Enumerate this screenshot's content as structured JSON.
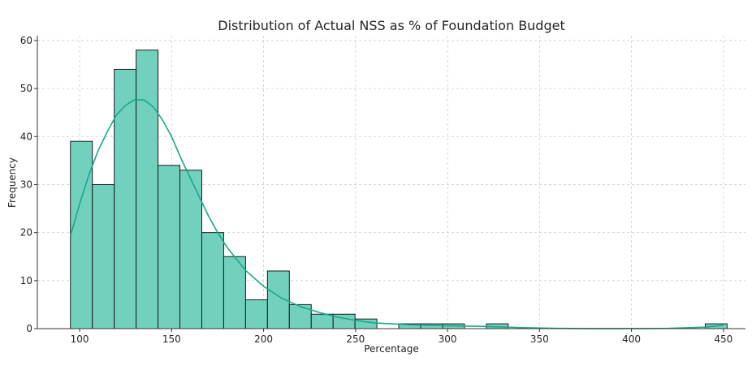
{
  "chart_data": {
    "type": "bar",
    "title": "Distribution of Actual NSS as % of Foundation Budget",
    "xlabel": "Percentage",
    "ylabel": "Frequency",
    "xlim": [
      77,
      462
    ],
    "ylim": [
      0,
      61
    ],
    "xticks": [
      100,
      150,
      200,
      250,
      300,
      350,
      400,
      450
    ],
    "yticks": [
      0,
      10,
      20,
      30,
      40,
      50,
      60
    ],
    "grid": true,
    "bins": [
      {
        "x0": 95.0,
        "x1": 106.9,
        "count": 39
      },
      {
        "x0": 106.9,
        "x1": 118.8,
        "count": 30
      },
      {
        "x0": 118.8,
        "x1": 130.7,
        "count": 54
      },
      {
        "x0": 130.7,
        "x1": 142.6,
        "count": 58
      },
      {
        "x0": 142.6,
        "x1": 154.5,
        "count": 34
      },
      {
        "x0": 154.5,
        "x1": 166.4,
        "count": 33
      },
      {
        "x0": 166.4,
        "x1": 178.3,
        "count": 20
      },
      {
        "x0": 178.3,
        "x1": 190.2,
        "count": 15
      },
      {
        "x0": 190.2,
        "x1": 202.1,
        "count": 6
      },
      {
        "x0": 202.1,
        "x1": 214.0,
        "count": 12
      },
      {
        "x0": 214.0,
        "x1": 225.9,
        "count": 5
      },
      {
        "x0": 225.9,
        "x1": 237.8,
        "count": 3
      },
      {
        "x0": 237.8,
        "x1": 249.7,
        "count": 3
      },
      {
        "x0": 249.7,
        "x1": 261.6,
        "count": 2
      },
      {
        "x0": 261.6,
        "x1": 273.5,
        "count": 0
      },
      {
        "x0": 273.5,
        "x1": 285.4,
        "count": 1
      },
      {
        "x0": 285.4,
        "x1": 297.3,
        "count": 1
      },
      {
        "x0": 297.3,
        "x1": 309.2,
        "count": 1
      },
      {
        "x0": 309.2,
        "x1": 321.1,
        "count": 0
      },
      {
        "x0": 321.1,
        "x1": 333.0,
        "count": 1
      },
      {
        "x0": 333.0,
        "x1": 344.9,
        "count": 0
      },
      {
        "x0": 344.9,
        "x1": 356.8,
        "count": 0
      },
      {
        "x0": 356.8,
        "x1": 368.7,
        "count": 0
      },
      {
        "x0": 368.7,
        "x1": 380.6,
        "count": 0
      },
      {
        "x0": 380.6,
        "x1": 392.5,
        "count": 0
      },
      {
        "x0": 392.5,
        "x1": 404.4,
        "count": 0
      },
      {
        "x0": 404.4,
        "x1": 416.3,
        "count": 0
      },
      {
        "x0": 416.3,
        "x1": 428.2,
        "count": 0
      },
      {
        "x0": 428.2,
        "x1": 440.1,
        "count": 0
      },
      {
        "x0": 440.1,
        "x1": 452.0,
        "count": 1
      }
    ],
    "kde": {
      "x": [
        95,
        100,
        105,
        110,
        115,
        120,
        125,
        130,
        135,
        140,
        145,
        150,
        155,
        160,
        165,
        170,
        175,
        180,
        190,
        200,
        210,
        220,
        230,
        240,
        250,
        260,
        280,
        300,
        320,
        340,
        360,
        380,
        400,
        420,
        440,
        450
      ],
      "y": [
        19.3,
        26,
        32,
        37,
        41,
        44.5,
        46.5,
        47.7,
        47.6,
        46.2,
        43.5,
        40,
        35.5,
        31.5,
        27.5,
        23.5,
        20,
        17,
        12.2,
        8.8,
        6.3,
        4.6,
        3.4,
        2.4,
        1.7,
        1.2,
        0.8,
        0.6,
        0.45,
        0.2,
        0.05,
        0.02,
        0.02,
        0.05,
        0.3,
        0.7
      ]
    },
    "colors": {
      "bar_fill": "#71d1bc",
      "bar_edge": "#1c1c1c",
      "kde_line": "#1aa88a",
      "grid": "#cccccc",
      "axis": "#333333",
      "text": "#262626"
    }
  }
}
